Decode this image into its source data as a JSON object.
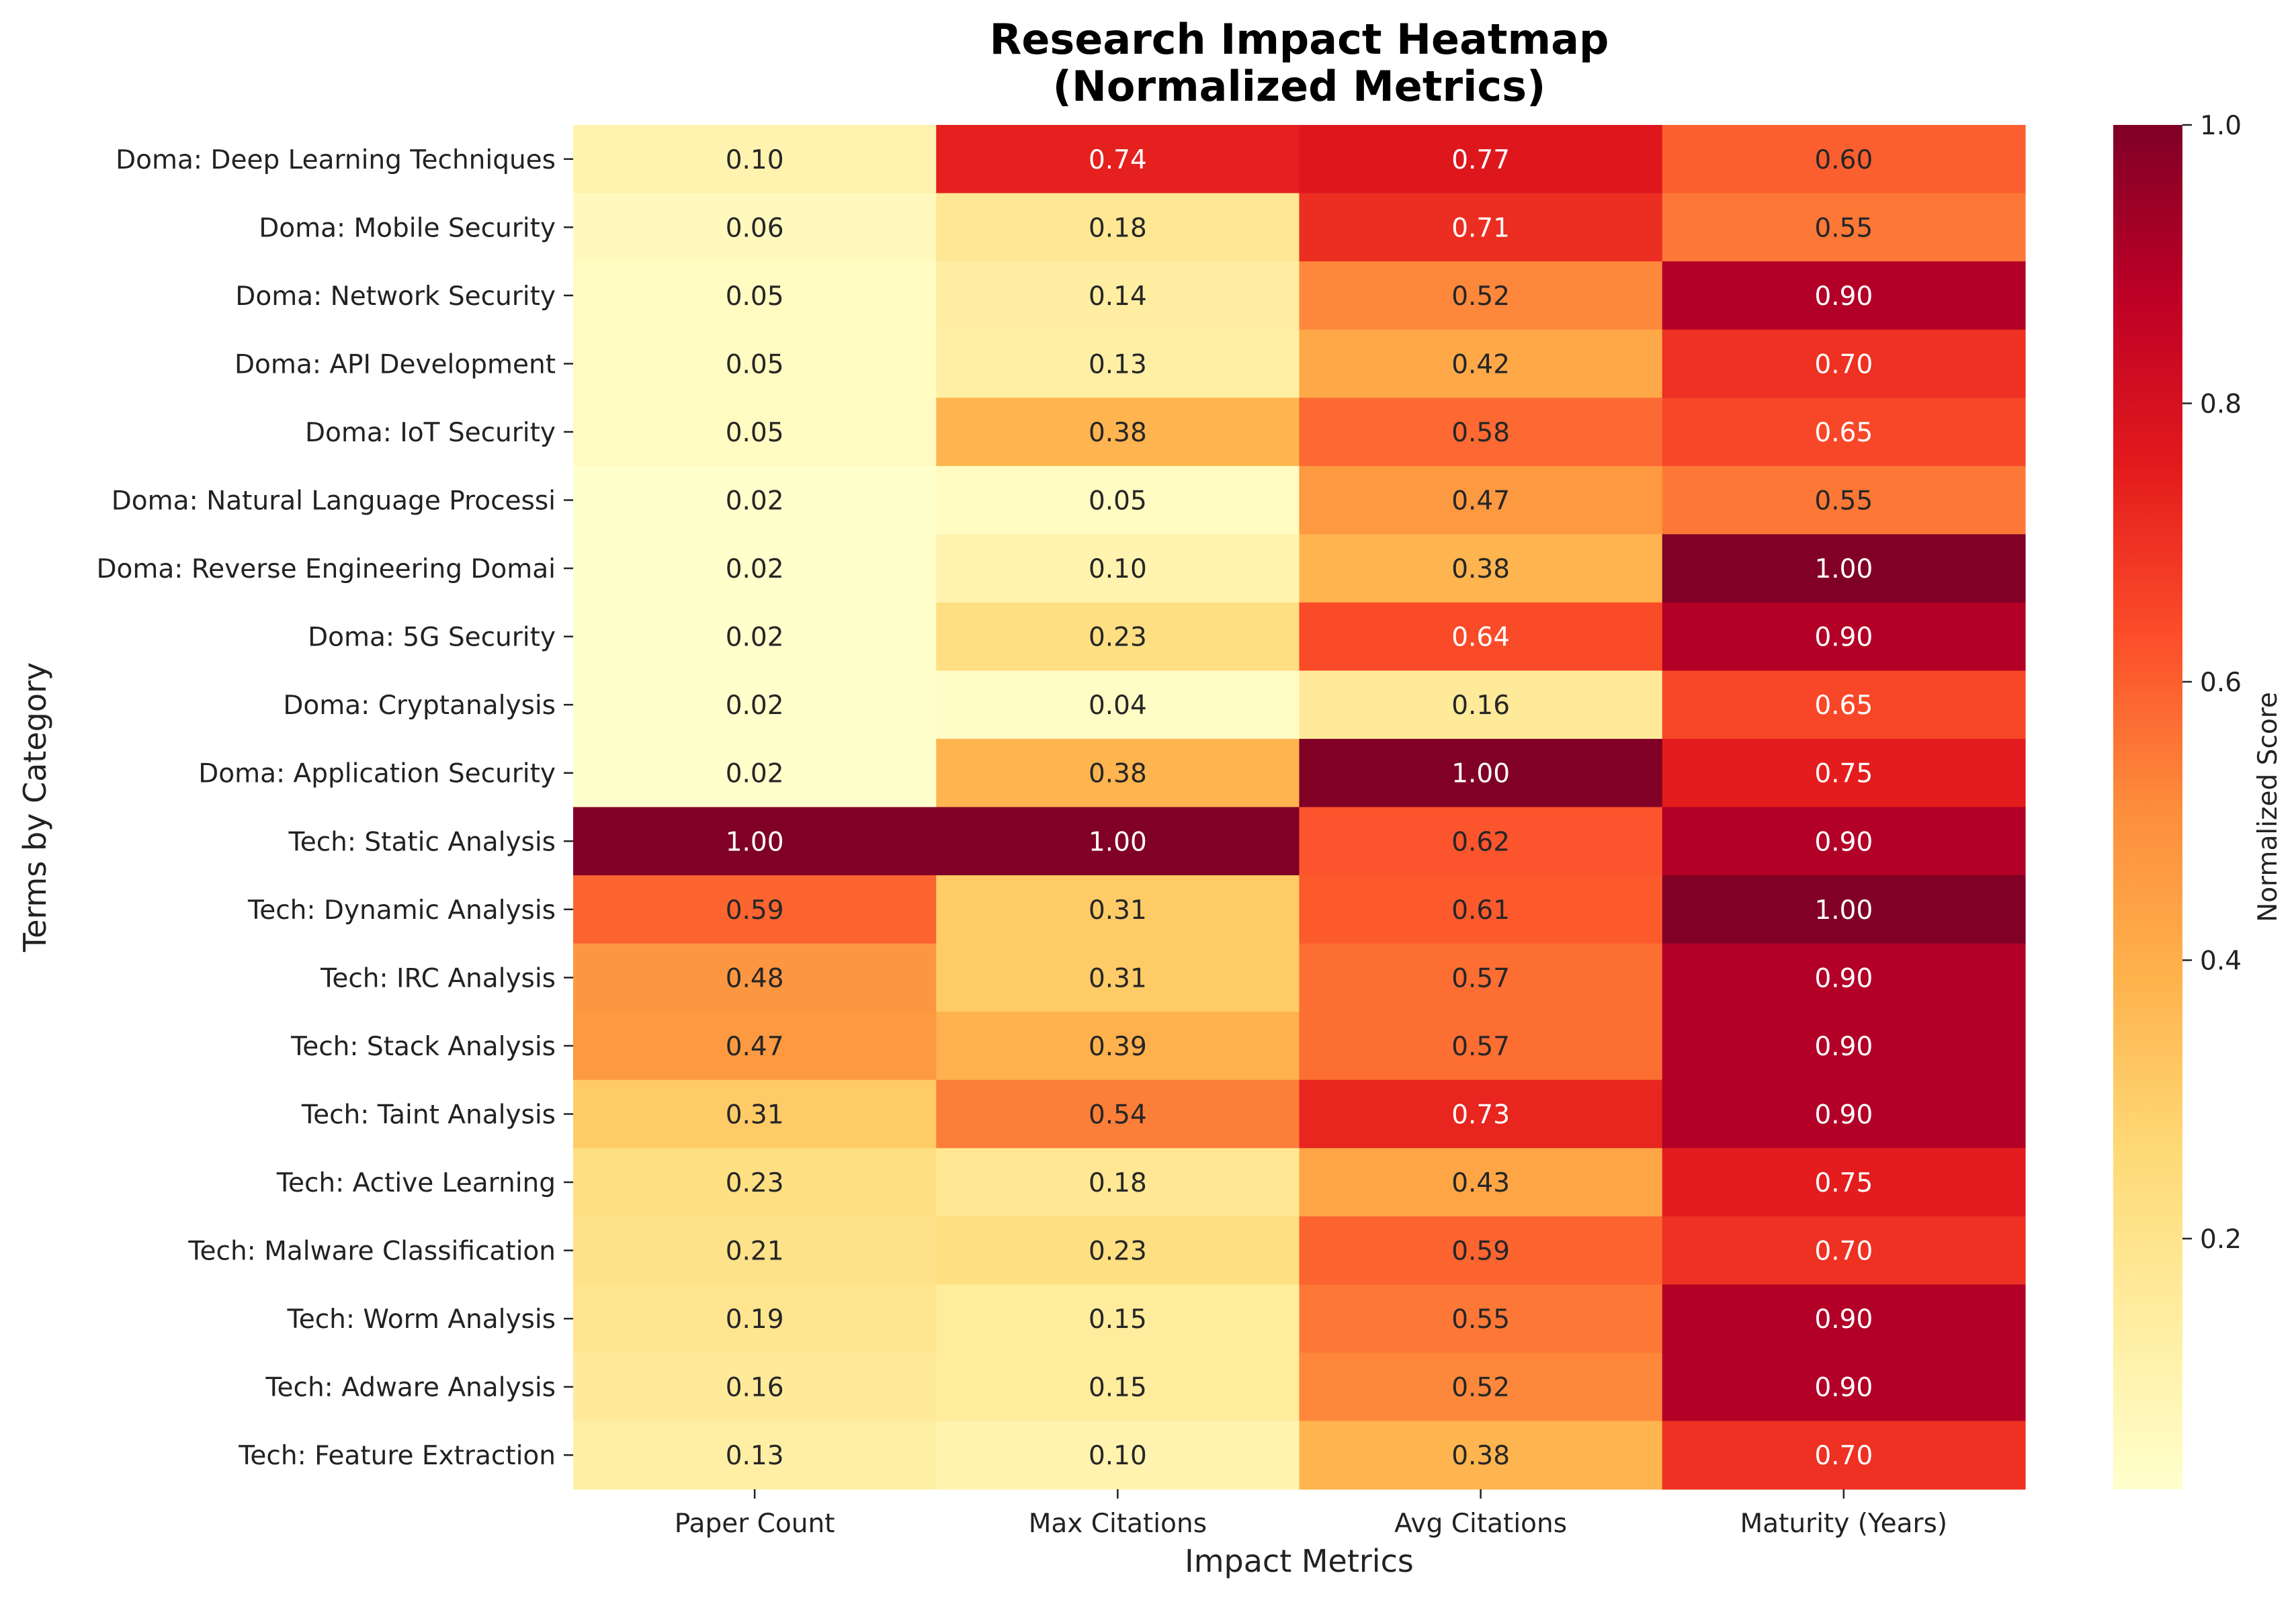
{
  "chart_data": {
    "type": "heatmap",
    "title": "Research Impact Heatmap\n(Normalized Metrics)",
    "xlabel": "Impact Metrics",
    "ylabel": "Terms by Category",
    "colorbar_label": "Normalized Score",
    "colormap": "YlOrRd",
    "value_range": [
      0.02,
      1.0
    ],
    "colorbar_ticks": [
      "0.2",
      "0.4",
      "0.6",
      "0.8",
      "1.0"
    ],
    "columns": [
      "Paper Count",
      "Max Citations",
      "Avg Citations",
      "Maturity (Years)"
    ],
    "rows": [
      "Doma: Deep Learning Techniques",
      "Doma: Mobile Security",
      "Doma: Network Security",
      "Doma: API Development",
      "Doma: IoT Security",
      "Doma: Natural Language Processi",
      "Doma: Reverse Engineering Domai",
      "Doma: 5G Security",
      "Doma: Cryptanalysis",
      "Doma: Application Security",
      "Tech: Static Analysis",
      "Tech: Dynamic Analysis",
      "Tech: IRC Analysis",
      "Tech: Stack Analysis",
      "Tech: Taint Analysis",
      "Tech: Active Learning",
      "Tech: Malware Classification",
      "Tech: Worm Analysis",
      "Tech: Adware Analysis",
      "Tech: Feature Extraction"
    ],
    "values": [
      [
        0.1,
        0.74,
        0.77,
        0.6
      ],
      [
        0.06,
        0.18,
        0.71,
        0.55
      ],
      [
        0.05,
        0.14,
        0.52,
        0.9
      ],
      [
        0.05,
        0.13,
        0.42,
        0.7
      ],
      [
        0.05,
        0.38,
        0.58,
        0.65
      ],
      [
        0.02,
        0.05,
        0.47,
        0.55
      ],
      [
        0.02,
        0.1,
        0.38,
        1.0
      ],
      [
        0.02,
        0.23,
        0.64,
        0.9
      ],
      [
        0.02,
        0.04,
        0.16,
        0.65
      ],
      [
        0.02,
        0.38,
        1.0,
        0.75
      ],
      [
        1.0,
        1.0,
        0.62,
        0.9
      ],
      [
        0.59,
        0.31,
        0.61,
        1.0
      ],
      [
        0.48,
        0.31,
        0.57,
        0.9
      ],
      [
        0.47,
        0.39,
        0.57,
        0.9
      ],
      [
        0.31,
        0.54,
        0.73,
        0.9
      ],
      [
        0.23,
        0.18,
        0.43,
        0.75
      ],
      [
        0.21,
        0.23,
        0.59,
        0.7
      ],
      [
        0.19,
        0.15,
        0.55,
        0.9
      ],
      [
        0.16,
        0.15,
        0.52,
        0.9
      ],
      [
        0.13,
        0.1,
        0.38,
        0.7
      ]
    ],
    "annotation_format": "2 decimals"
  }
}
